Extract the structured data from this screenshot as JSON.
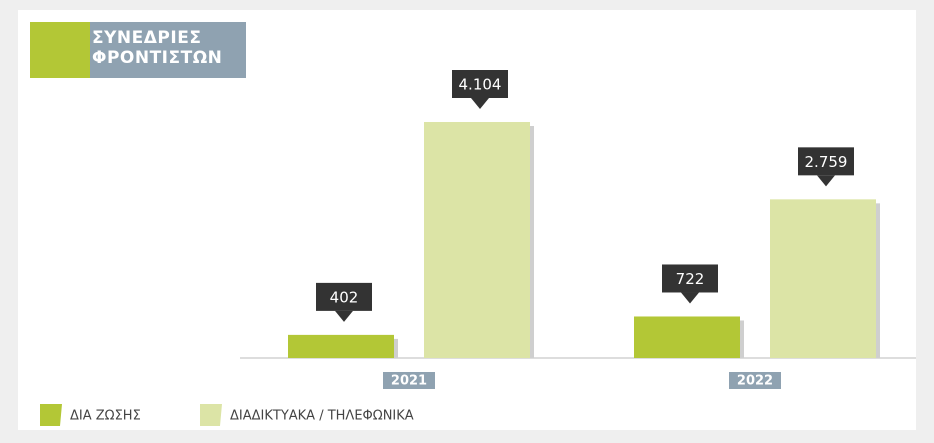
{
  "chart_data": {
    "type": "bar",
    "title": "ΣΥΝΕΔΡΙΕΣ ΦΡΟΝΤΙΣΤΩΝ",
    "categories": [
      "2021",
      "2022"
    ],
    "series": [
      {
        "name": "ΔΙΑ ΖΩΣΗΣ",
        "color": "#b3c736",
        "values": [
          402,
          722
        ],
        "value_labels": [
          "402",
          "722"
        ]
      },
      {
        "name": "ΔΙΑΔΙΚΤΥΑΚΑ / ΤΗΛΕΦΩΝΙΚΑ",
        "color": "#dce4a6",
        "values": [
          4104,
          2759
        ],
        "value_labels": [
          "4.104",
          "2.759"
        ]
      }
    ]
  }
}
